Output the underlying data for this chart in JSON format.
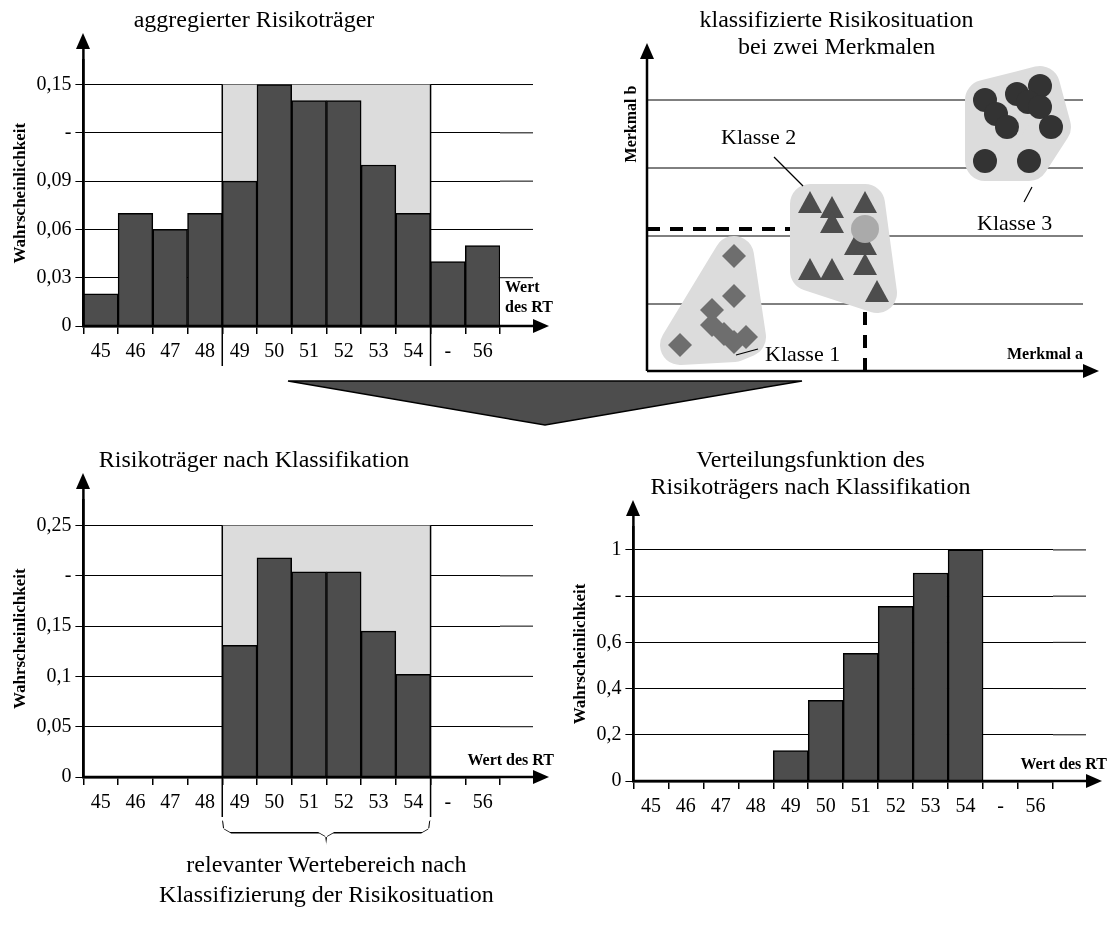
{
  "chart_data": [
    {
      "type": "bar",
      "title": "aggregierter Risikoträger",
      "xlabel": "Wert des RT",
      "ylabel": "Wahrscheinlichkeit",
      "categories": [
        "45",
        "46",
        "47",
        "48",
        "49",
        "50",
        "51",
        "52",
        "53",
        "54",
        "-",
        "56"
      ],
      "values": [
        0.02,
        0.07,
        0.06,
        0.07,
        0.09,
        0.15,
        0.14,
        0.14,
        0.1,
        0.07,
        0.04,
        0.05
      ],
      "color": "#4d4d4d",
      "ylim": [
        0,
        0.165
      ],
      "yticks": [
        {
          "value": 0,
          "label": "0"
        },
        {
          "value": 0.03,
          "label": "0,03"
        },
        {
          "value": 0.06,
          "label": "0,06"
        },
        {
          "value": 0.09,
          "label": "0,09"
        },
        {
          "value": 0.12,
          "label": "-"
        },
        {
          "value": 0.15,
          "label": "0,15"
        }
      ],
      "grid": "y",
      "bands": [
        {
          "axis": "x",
          "from": "49",
          "to": "54",
          "color": "#dcdcdc"
        }
      ]
    },
    {
      "type": "other",
      "title": "klassifizierte Risikosituation bei zwei Merkmalen",
      "xlabel": "Merkmal a",
      "ylabel": "Merkmal b",
      "annotations": [
        "Klasse 1",
        "Klasse 2",
        "Klasse 3"
      ]
    },
    {
      "type": "bar",
      "title": "Risikoträger nach Klassifikation",
      "xlabel": "Wert des RT",
      "ylabel": "Wahrscheinlichkeit",
      "categories": [
        "45",
        "46",
        "47",
        "48",
        "49",
        "50",
        "51",
        "52",
        "53",
        "54",
        "-",
        "56"
      ],
      "values": [
        null,
        null,
        null,
        null,
        0.131,
        0.218,
        0.204,
        0.204,
        0.145,
        0.102,
        null,
        null
      ],
      "color": "#4d4d4d",
      "ylim": [
        0,
        0.275
      ],
      "yticks": [
        {
          "value": 0,
          "label": "0"
        },
        {
          "value": 0.05,
          "label": "0,05"
        },
        {
          "value": 0.1,
          "label": "0,1"
        },
        {
          "value": 0.15,
          "label": "0,15"
        },
        {
          "value": 0.2,
          "label": "-"
        },
        {
          "value": 0.25,
          "label": "0,25"
        }
      ],
      "grid": "y",
      "bands": [
        {
          "axis": "x",
          "from": "49",
          "to": "54",
          "color": "#dcdcdc"
        }
      ],
      "annotations": [
        "relevanter Wertebereich nach Klassifizierung der Risikosituation"
      ]
    },
    {
      "type": "bar",
      "title": "Verteilungsfunktion des Risikoträgers nach Klassifikation",
      "xlabel": "Wert des RT",
      "ylabel": "Wahrscheinlichkeit",
      "categories": [
        "45",
        "46",
        "47",
        "48",
        "49",
        "50",
        "51",
        "52",
        "53",
        "54",
        "-",
        "56"
      ],
      "values": [
        null,
        null,
        null,
        null,
        0.132,
        0.349,
        0.552,
        0.756,
        0.9,
        1.0,
        null,
        null
      ],
      "color": "#4d4d4d",
      "ylim": [
        0,
        1.1
      ],
      "yticks": [
        {
          "value": 0,
          "label": "0"
        },
        {
          "value": 0.2,
          "label": "0,2"
        },
        {
          "value": 0.4,
          "label": "0,4"
        },
        {
          "value": 0.6,
          "label": "0,6"
        },
        {
          "value": 0.8,
          "label": "-"
        },
        {
          "value": 1,
          "label": "1"
        }
      ],
      "grid": "y"
    }
  ]
}
